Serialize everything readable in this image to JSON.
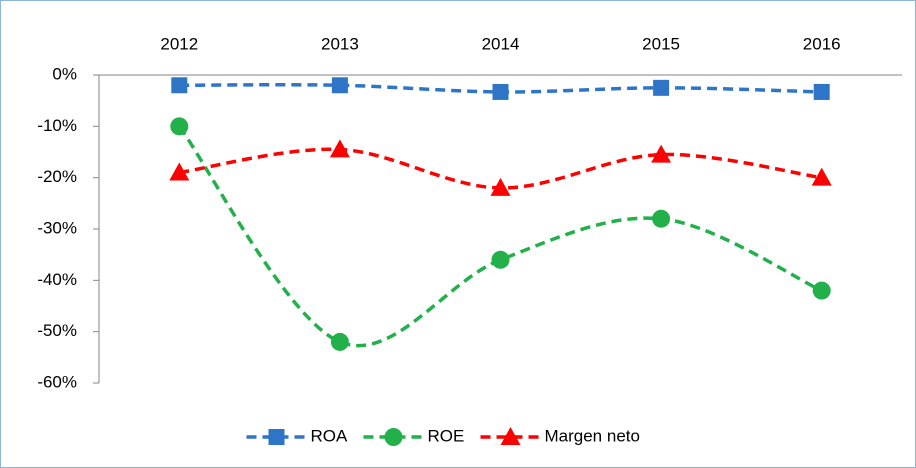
{
  "chart_data": {
    "type": "line",
    "categories": [
      "2012",
      "2013",
      "2014",
      "2015",
      "2016"
    ],
    "series": [
      {
        "name": "ROA",
        "color": "#2e75c8",
        "marker": "square",
        "values": [
          -2,
          -2,
          -3.3,
          -2.5,
          -3.3
        ]
      },
      {
        "name": "ROE",
        "color": "#22b04b",
        "marker": "circle",
        "values": [
          -10,
          -52,
          -36,
          -28,
          -42
        ]
      },
      {
        "name": "Margen neto",
        "color": "#ff0000",
        "marker": "triangle",
        "values": [
          -19,
          -14.5,
          -22,
          -15.5,
          -20
        ]
      }
    ],
    "ylim": [
      -60,
      0
    ],
    "yticks": [
      {
        "value": 0,
        "label": "0%"
      },
      {
        "value": -10,
        "label": "-10%"
      },
      {
        "value": -20,
        "label": "-20%"
      },
      {
        "value": -30,
        "label": "-30%"
      },
      {
        "value": -40,
        "label": "-40%"
      },
      {
        "value": -50,
        "label": "-50%"
      },
      {
        "value": -60,
        "label": "-60%"
      }
    ],
    "smooth": true,
    "grid": false,
    "legend": "bottom"
  }
}
